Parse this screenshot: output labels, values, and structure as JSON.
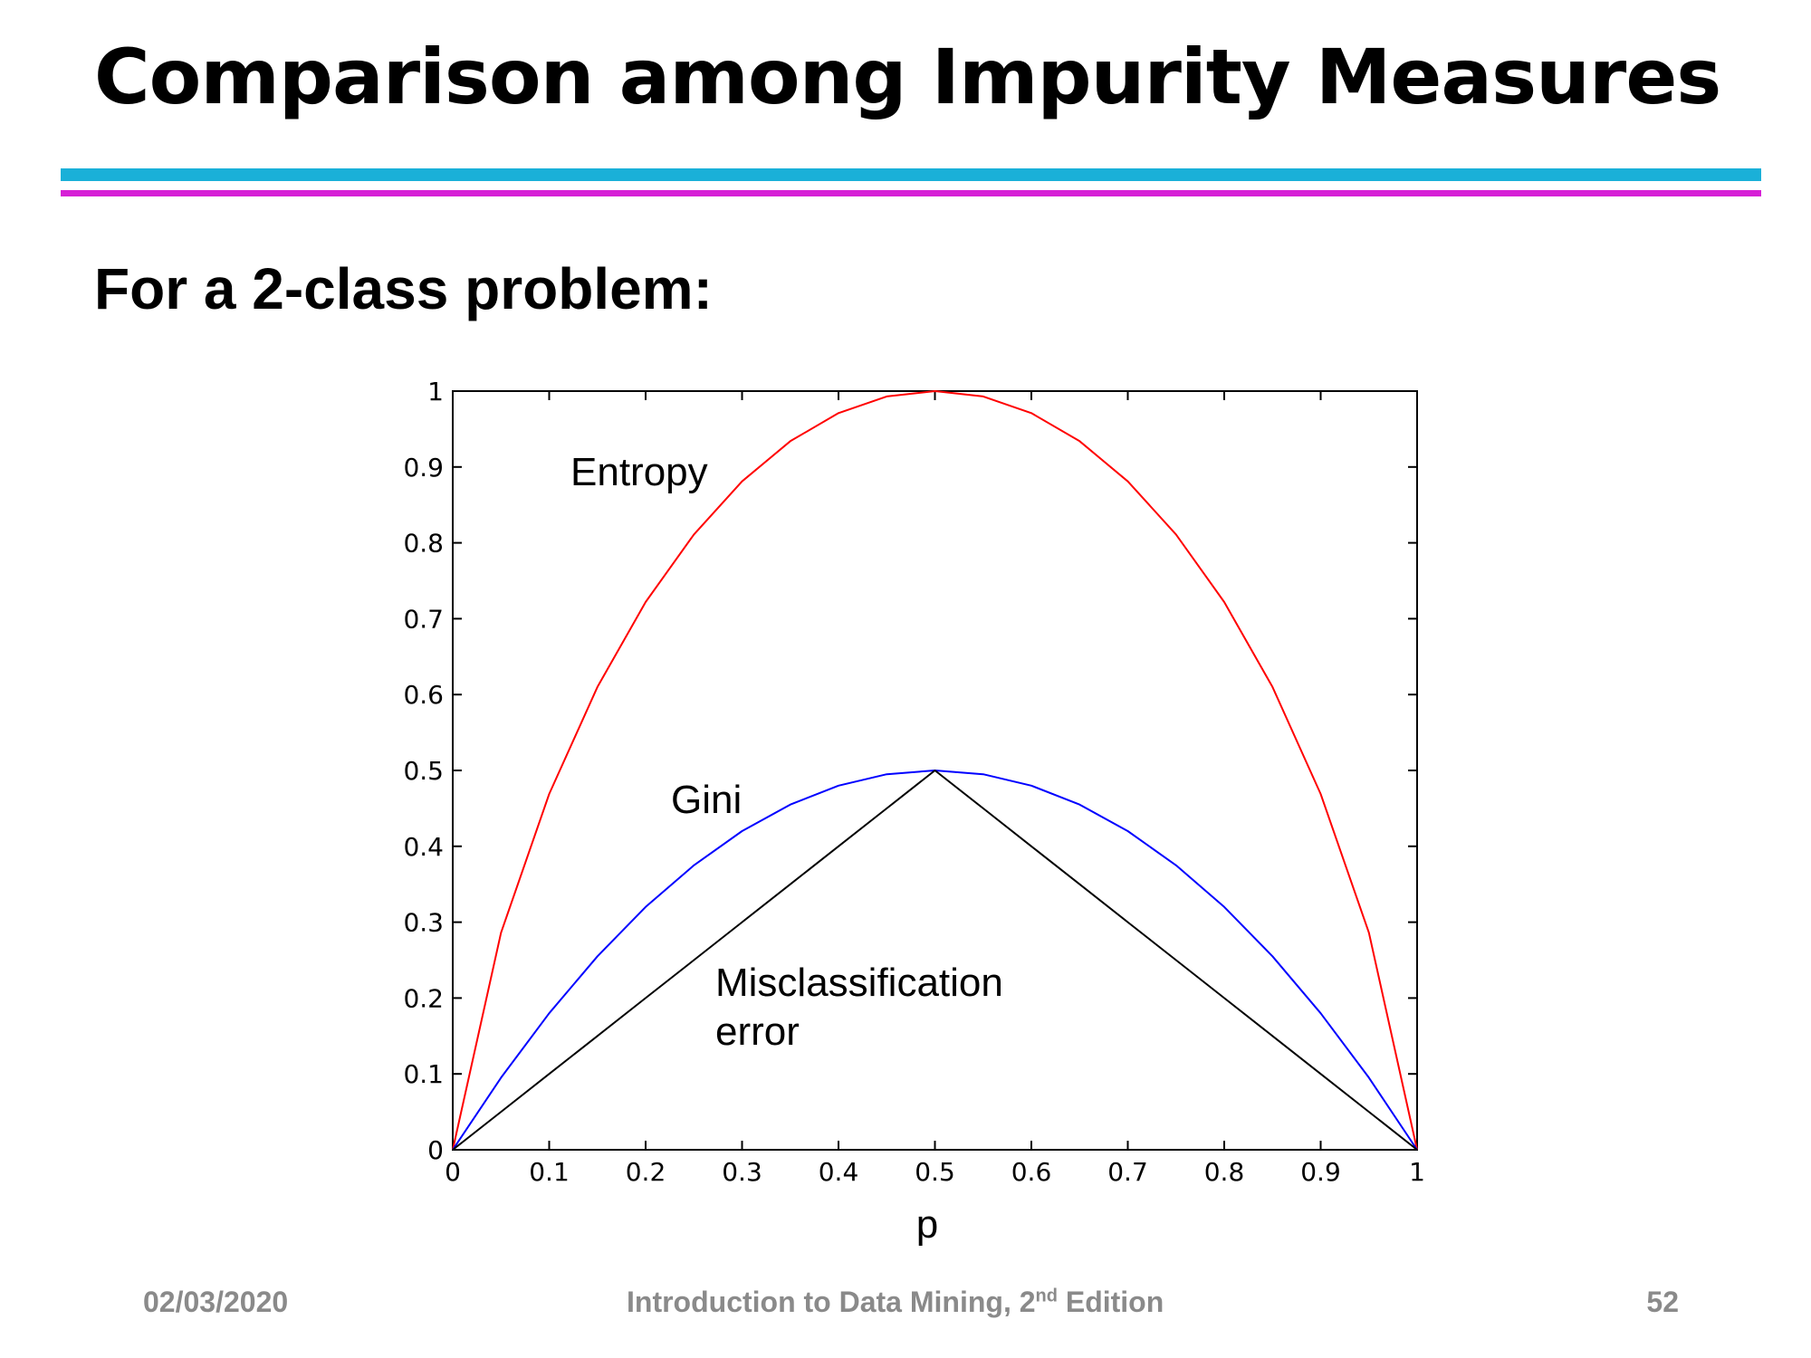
{
  "slide": {
    "title": "Comparison among Impurity Measures",
    "subtitle": "For a 2-class problem:",
    "colors": {
      "rule_top": "#1ab0d8",
      "rule_bottom": "#d61fd6",
      "footer_text": "#8a8a8a"
    }
  },
  "footer": {
    "date": "02/03/2020",
    "book_prefix": "Introduction to Data Mining, 2",
    "book_superscript": "nd",
    "book_suffix": " Edition",
    "page": "52"
  },
  "chart_data": {
    "type": "line",
    "xlabel": "p",
    "ylabel": "",
    "xlim": [
      0,
      1
    ],
    "ylim": [
      0,
      1
    ],
    "x_ticks": [
      "0",
      "0.1",
      "0.2",
      "0.3",
      "0.4",
      "0.5",
      "0.6",
      "0.7",
      "0.8",
      "0.9",
      "1"
    ],
    "y_ticks": [
      "0",
      "0.1",
      "0.2",
      "0.3",
      "0.4",
      "0.5",
      "0.6",
      "0.7",
      "0.8",
      "0.9",
      "1"
    ],
    "x": [
      0,
      0.05,
      0.1,
      0.15,
      0.2,
      0.25,
      0.3,
      0.35,
      0.4,
      0.45,
      0.5,
      0.55,
      0.6,
      0.65,
      0.7,
      0.75,
      0.8,
      0.85,
      0.9,
      0.95,
      1
    ],
    "series": [
      {
        "name": "Entropy",
        "color": "#ff0000",
        "values": [
          0,
          0.286,
          0.469,
          0.61,
          0.722,
          0.811,
          0.881,
          0.934,
          0.971,
          0.993,
          1.0,
          0.993,
          0.971,
          0.934,
          0.881,
          0.811,
          0.722,
          0.61,
          0.469,
          0.286,
          0
        ]
      },
      {
        "name": "Gini",
        "color": "#0000ff",
        "values": [
          0,
          0.095,
          0.18,
          0.255,
          0.32,
          0.375,
          0.42,
          0.455,
          0.48,
          0.495,
          0.5,
          0.495,
          0.48,
          0.455,
          0.42,
          0.375,
          0.32,
          0.255,
          0.18,
          0.095,
          0
        ]
      },
      {
        "name": "Misclassification error",
        "color": "#000000",
        "values": [
          0,
          0.05,
          0.1,
          0.15,
          0.2,
          0.25,
          0.3,
          0.35,
          0.4,
          0.45,
          0.5,
          0.45,
          0.4,
          0.35,
          0.3,
          0.25,
          0.2,
          0.15,
          0.1,
          0.05,
          0
        ]
      }
    ],
    "annotations": [
      {
        "text": "Entropy"
      },
      {
        "text": "Gini"
      },
      {
        "text": "Misclassification"
      },
      {
        "text": "error"
      }
    ],
    "grid": false,
    "legend": "none"
  }
}
